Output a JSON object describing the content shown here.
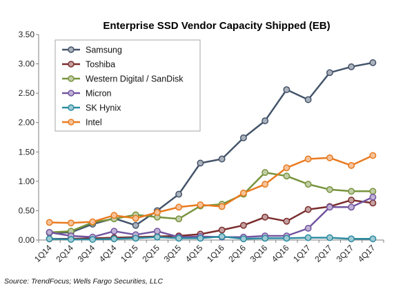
{
  "chart_data": {
    "type": "line",
    "title": "Enterprise SSD Vendor Capacity Shipped (EB)",
    "xlabel": "",
    "ylabel": "",
    "x": [
      "1Q14",
      "2Q14",
      "3Q14",
      "4Q14",
      "1Q15",
      "2Q15",
      "3Q15",
      "4Q15",
      "1Q16",
      "2Q16",
      "3Q16",
      "4Q16",
      "1Q17",
      "2Q17",
      "3Q17",
      "4Q17"
    ],
    "ylim": [
      0,
      3.5
    ],
    "yticks": [
      0,
      0.5,
      1.0,
      1.5,
      2.0,
      2.5,
      3.0,
      3.5
    ],
    "ytick_labels": [
      "0.00",
      "0.50",
      "1.00",
      "1.50",
      "2.00",
      "2.50",
      "3.00",
      "3.50"
    ],
    "grid": false,
    "legend_position": "top-left",
    "series": [
      {
        "name": "Samsung",
        "color": "#44546a",
        "values": [
          0.12,
          0.13,
          0.27,
          0.37,
          0.25,
          0.5,
          0.78,
          1.31,
          1.38,
          1.74,
          2.03,
          2.56,
          2.39,
          2.85,
          2.95,
          3.02
        ]
      },
      {
        "name": "Toshiba",
        "color": "#7b2c2c",
        "values": [
          0.02,
          0.02,
          0.03,
          0.04,
          0.05,
          0.06,
          0.07,
          0.1,
          0.17,
          0.25,
          0.39,
          0.32,
          0.52,
          0.57,
          0.68,
          0.63
        ]
      },
      {
        "name": "Western Digital / SanDisk",
        "color": "#77933c",
        "values": [
          0.13,
          0.15,
          0.3,
          0.36,
          0.43,
          0.39,
          0.36,
          0.58,
          0.61,
          0.78,
          1.15,
          1.09,
          0.95,
          0.86,
          0.83,
          0.83
        ]
      },
      {
        "name": "Micron",
        "color": "#7254a0",
        "values": [
          0.13,
          0.07,
          0.05,
          0.15,
          0.09,
          0.15,
          0.05,
          0.06,
          0.05,
          0.05,
          0.07,
          0.07,
          0.2,
          0.56,
          0.56,
          0.73
        ]
      },
      {
        "name": "SK Hynix",
        "color": "#2b8ba0",
        "values": [
          0.02,
          0.01,
          0.01,
          0.02,
          0.03,
          0.05,
          0.03,
          0.03,
          0.06,
          0.02,
          0.03,
          0.03,
          0.04,
          0.04,
          0.02,
          0.02
        ]
      },
      {
        "name": "Intel",
        "color": "#e97a1e",
        "values": [
          0.3,
          0.29,
          0.31,
          0.42,
          0.37,
          0.47,
          0.56,
          0.6,
          0.57,
          0.8,
          0.95,
          1.23,
          1.38,
          1.4,
          1.27,
          1.44
        ]
      }
    ]
  },
  "source": "Source: TrendFocus; Wells Fargo Securities, LLC"
}
